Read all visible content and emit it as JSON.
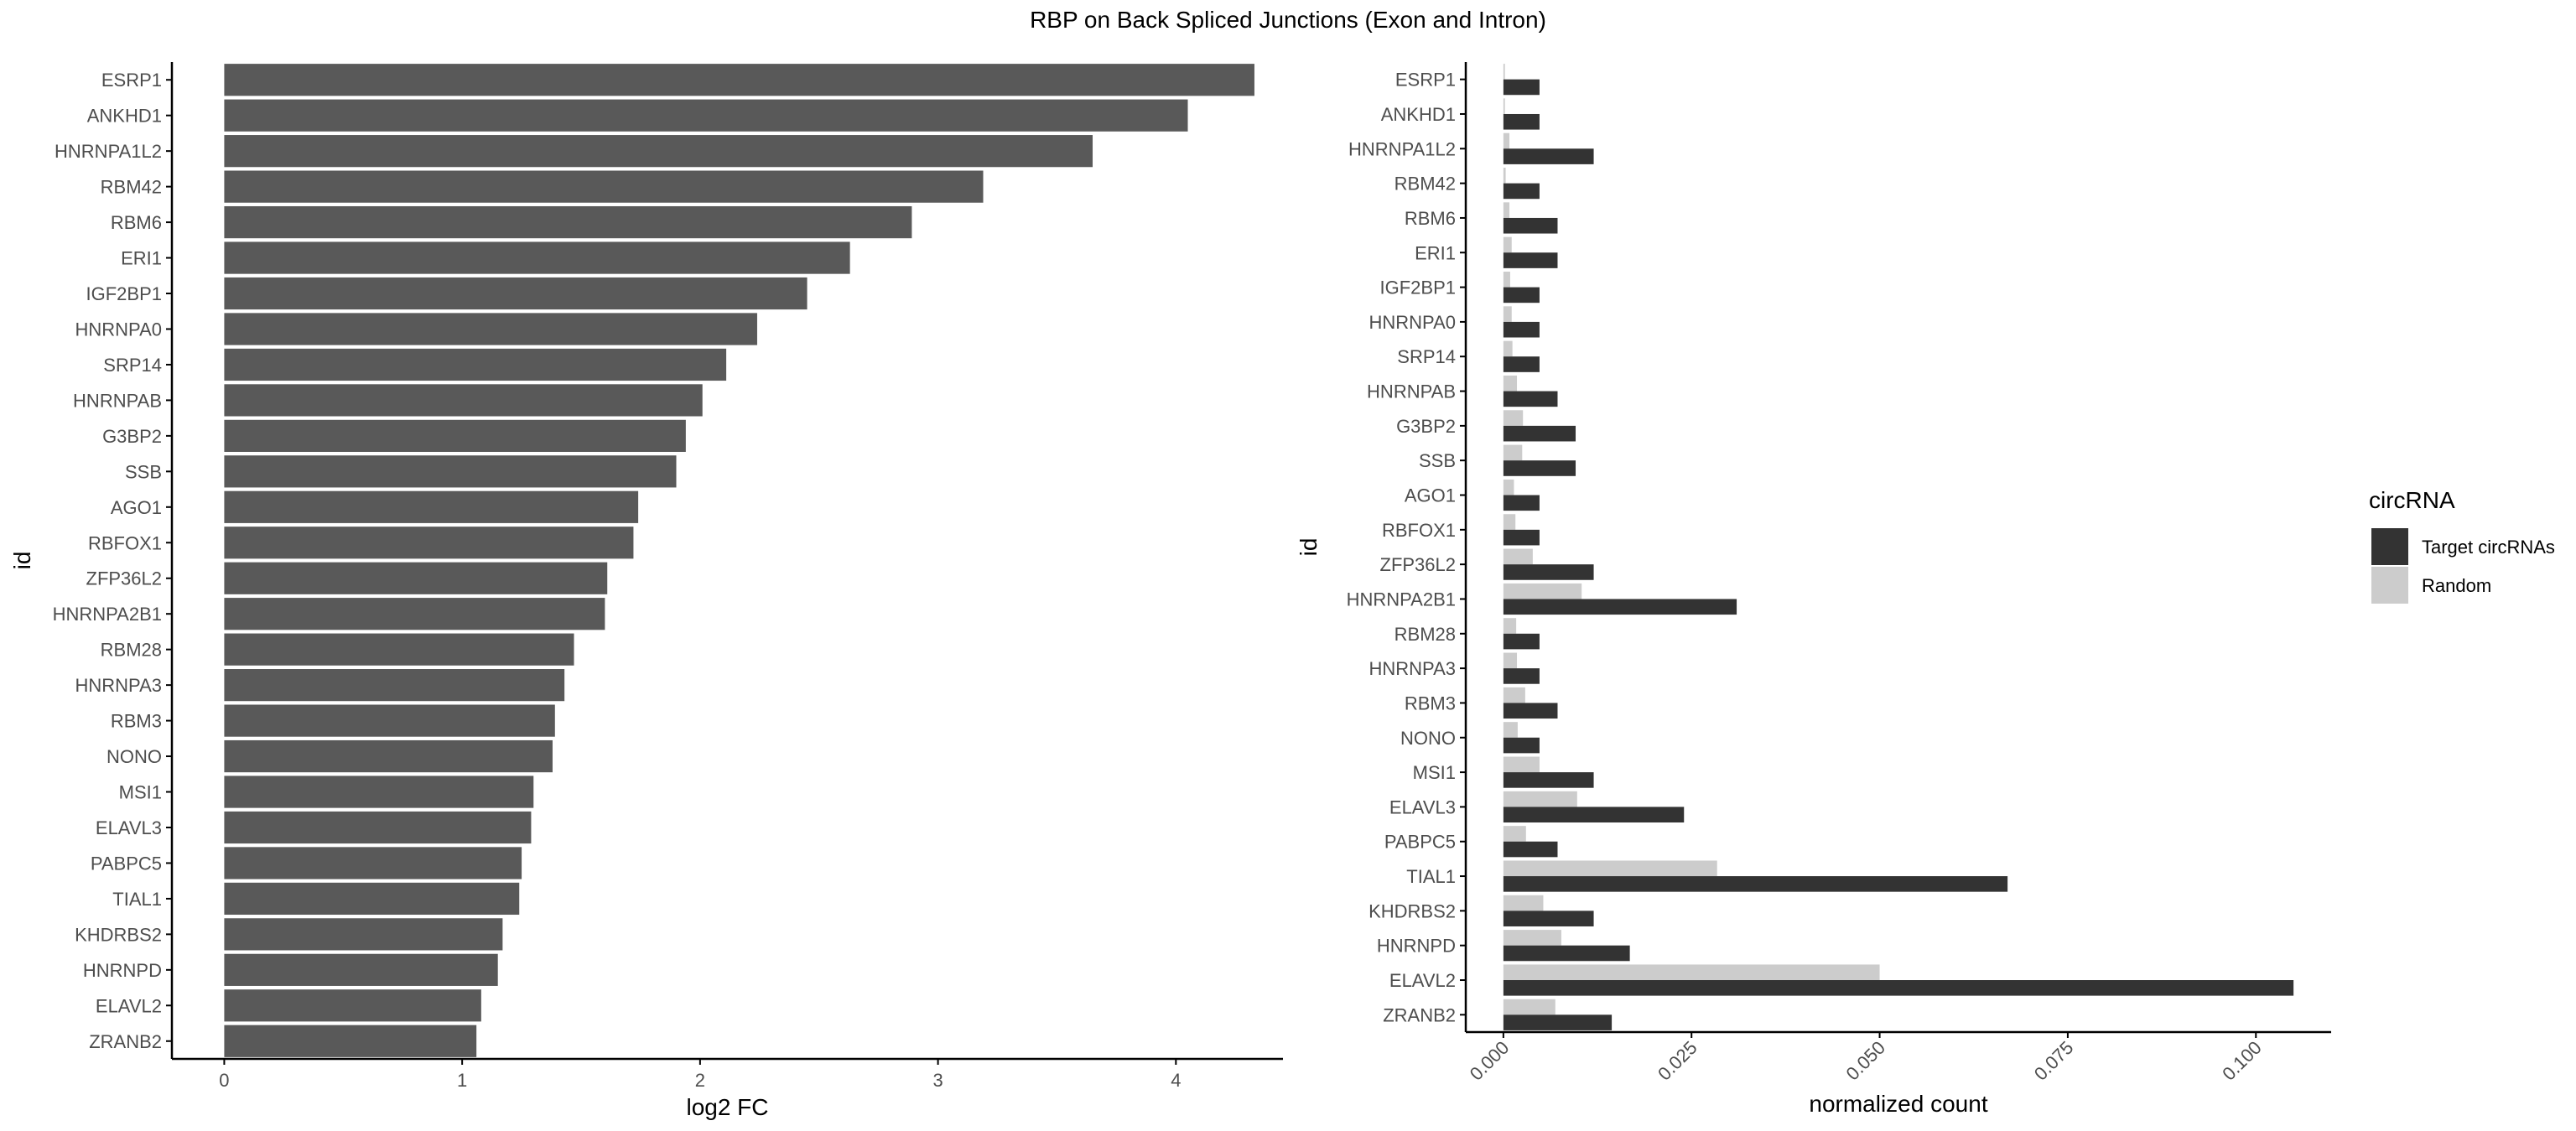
{
  "title": "RBP on Back Spliced Junctions (Exon and Intron)",
  "colors": {
    "left_bar": "#595959",
    "target": "#333333",
    "random": "#cccccc",
    "axis": "#000000",
    "tick_text": "#4d4d4d"
  },
  "chart_data": [
    {
      "type": "bar",
      "orientation": "horizontal",
      "xlabel": "log2 FC",
      "ylabel": "id",
      "xlim": [
        -0.22,
        4.45
      ],
      "xticks": [
        0,
        1,
        2,
        3,
        4
      ],
      "xtick_labels": [
        "0",
        "1",
        "2",
        "3",
        "4"
      ],
      "grid": false,
      "categories": [
        "ESRP1",
        "ANKHD1",
        "HNRNPA1L2",
        "RBM42",
        "RBM6",
        "ERI1",
        "IGF2BP1",
        "HNRNPA0",
        "SRP14",
        "HNRNPAB",
        "G3BP2",
        "SSB",
        "AGO1",
        "RBFOX1",
        "ZFP36L2",
        "HNRNPA2B1",
        "RBM28",
        "HNRNPA3",
        "RBM3",
        "NONO",
        "MSI1",
        "ELAVL3",
        "PABPC5",
        "TIAL1",
        "KHDRBS2",
        "HNRNPD",
        "ELAVL2",
        "ZRANB2"
      ],
      "values": [
        4.33,
        4.05,
        3.65,
        3.19,
        2.89,
        2.63,
        2.45,
        2.24,
        2.11,
        2.01,
        1.94,
        1.9,
        1.74,
        1.72,
        1.61,
        1.6,
        1.47,
        1.43,
        1.39,
        1.38,
        1.3,
        1.29,
        1.25,
        1.24,
        1.17,
        1.15,
        1.08,
        1.06
      ]
    },
    {
      "type": "bar",
      "orientation": "horizontal",
      "grouped": true,
      "xlabel": "normalized count",
      "ylabel": "id",
      "xlim": [
        -0.005,
        0.11
      ],
      "xticks": [
        0,
        0.025,
        0.05,
        0.075,
        0.1
      ],
      "xtick_labels": [
        "0.000",
        "0.025",
        "0.050",
        "0.075",
        "0.100"
      ],
      "grid": false,
      "legend": {
        "title": "circRNA",
        "position": "right"
      },
      "categories": [
        "ESRP1",
        "ANKHD1",
        "HNRNPA1L2",
        "RBM42",
        "RBM6",
        "ERI1",
        "IGF2BP1",
        "HNRNPA0",
        "SRP14",
        "HNRNPAB",
        "G3BP2",
        "SSB",
        "AGO1",
        "RBFOX1",
        "ZFP36L2",
        "HNRNPA2B1",
        "RBM28",
        "HNRNPA3",
        "RBM3",
        "NONO",
        "MSI1",
        "ELAVL3",
        "PABPC5",
        "TIAL1",
        "KHDRBS2",
        "HNRNPD",
        "ELAVL2",
        "ZRANB2"
      ],
      "series": [
        {
          "name": "Target circRNAs",
          "values": [
            0.0048,
            0.0048,
            0.012,
            0.0048,
            0.0072,
            0.0072,
            0.0048,
            0.0048,
            0.0048,
            0.0072,
            0.0096,
            0.0096,
            0.0048,
            0.0048,
            0.012,
            0.031,
            0.0048,
            0.0048,
            0.0072,
            0.0048,
            0.012,
            0.024,
            0.0072,
            0.067,
            0.012,
            0.0168,
            0.105,
            0.0144
          ]
        },
        {
          "name": "Random",
          "values": [
            0.0002,
            0.0002,
            0.0008,
            0.0003,
            0.0008,
            0.0011,
            0.0009,
            0.0011,
            0.0012,
            0.0018,
            0.0026,
            0.0025,
            0.0014,
            0.0016,
            0.0039,
            0.0104,
            0.0017,
            0.0018,
            0.0029,
            0.0019,
            0.0048,
            0.0098,
            0.003,
            0.0284,
            0.0053,
            0.0077,
            0.05,
            0.0069
          ]
        }
      ]
    }
  ]
}
